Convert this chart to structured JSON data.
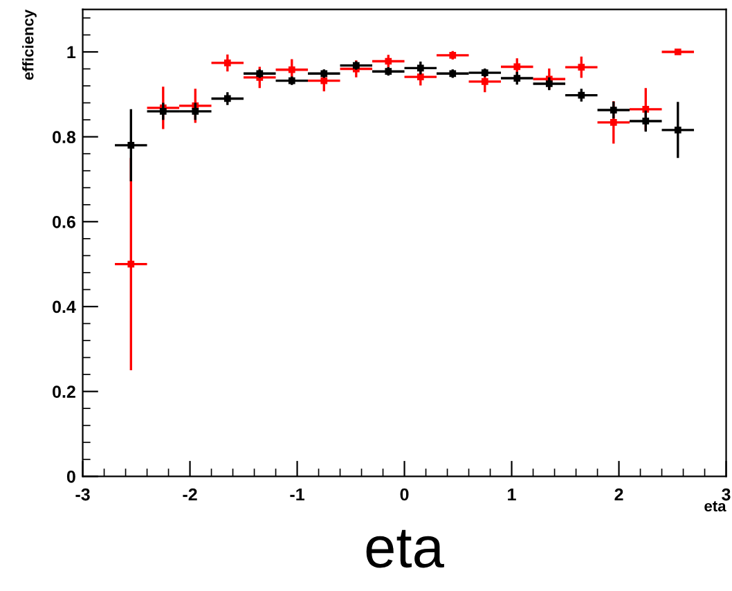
{
  "chart_data": {
    "type": "scatter",
    "xlabel": "eta",
    "ylabel": "efficiency",
    "annotations": [
      "eta"
    ],
    "x": [
      -2.55,
      -2.25,
      -1.95,
      -1.65,
      -1.35,
      -1.05,
      -0.75,
      -0.45,
      -0.15,
      0.15,
      0.45,
      0.75,
      1.05,
      1.35,
      1.65,
      1.95,
      2.25,
      2.55
    ],
    "series": [
      {
        "color": "#000000",
        "values": [
          0.78,
          0.86,
          0.86,
          0.89,
          0.949,
          0.932,
          0.949,
          0.968,
          0.954,
          0.962,
          0.949,
          0.951,
          0.938,
          0.925,
          0.898,
          0.863,
          0.837,
          0.816
        ],
        "errors": [
          0.085,
          0.02,
          0.02,
          0.015,
          0.01,
          0.01,
          0.01,
          0.01,
          0.01,
          0.015,
          0.01,
          0.01,
          0.015,
          0.015,
          0.015,
          0.02,
          0.025,
          0.066
        ],
        "xerrors": [
          0.15,
          0.15,
          0.15,
          0.15,
          0.15,
          0.15,
          0.15,
          0.15,
          0.15,
          0.15,
          0.15,
          0.15,
          0.15,
          0.15,
          0.15,
          0.15,
          0.15,
          0.15
        ]
      },
      {
        "color": "#ff0000",
        "values": [
          0.5,
          0.868,
          0.873,
          0.974,
          0.94,
          0.958,
          0.932,
          0.96,
          0.978,
          0.941,
          0.992,
          0.93,
          0.965,
          0.936,
          0.964,
          0.834,
          0.865,
          1.0
        ],
        "errors": [
          0.25,
          0.05,
          0.04,
          0.02,
          0.025,
          0.025,
          0.025,
          0.02,
          0.015,
          0.02,
          0.01,
          0.025,
          0.02,
          0.025,
          0.025,
          0.05,
          0.05,
          0
        ],
        "xerrors": [
          0.15,
          0.15,
          0.15,
          0.15,
          0.15,
          0.15,
          0.15,
          0.15,
          0.15,
          0.15,
          0.15,
          0.15,
          0.15,
          0.15,
          0.15,
          0.15,
          0.15,
          0.15
        ]
      }
    ],
    "xlim": [
      -3,
      3
    ],
    "ylim": [
      0,
      1.1
    ],
    "xticks": [
      -3,
      -2,
      -1,
      0,
      1,
      2,
      3
    ],
    "yticks": [
      0,
      0.2,
      0.4,
      0.6,
      0.8,
      1
    ],
    "grid": false,
    "marker": "square",
    "legend": false
  }
}
